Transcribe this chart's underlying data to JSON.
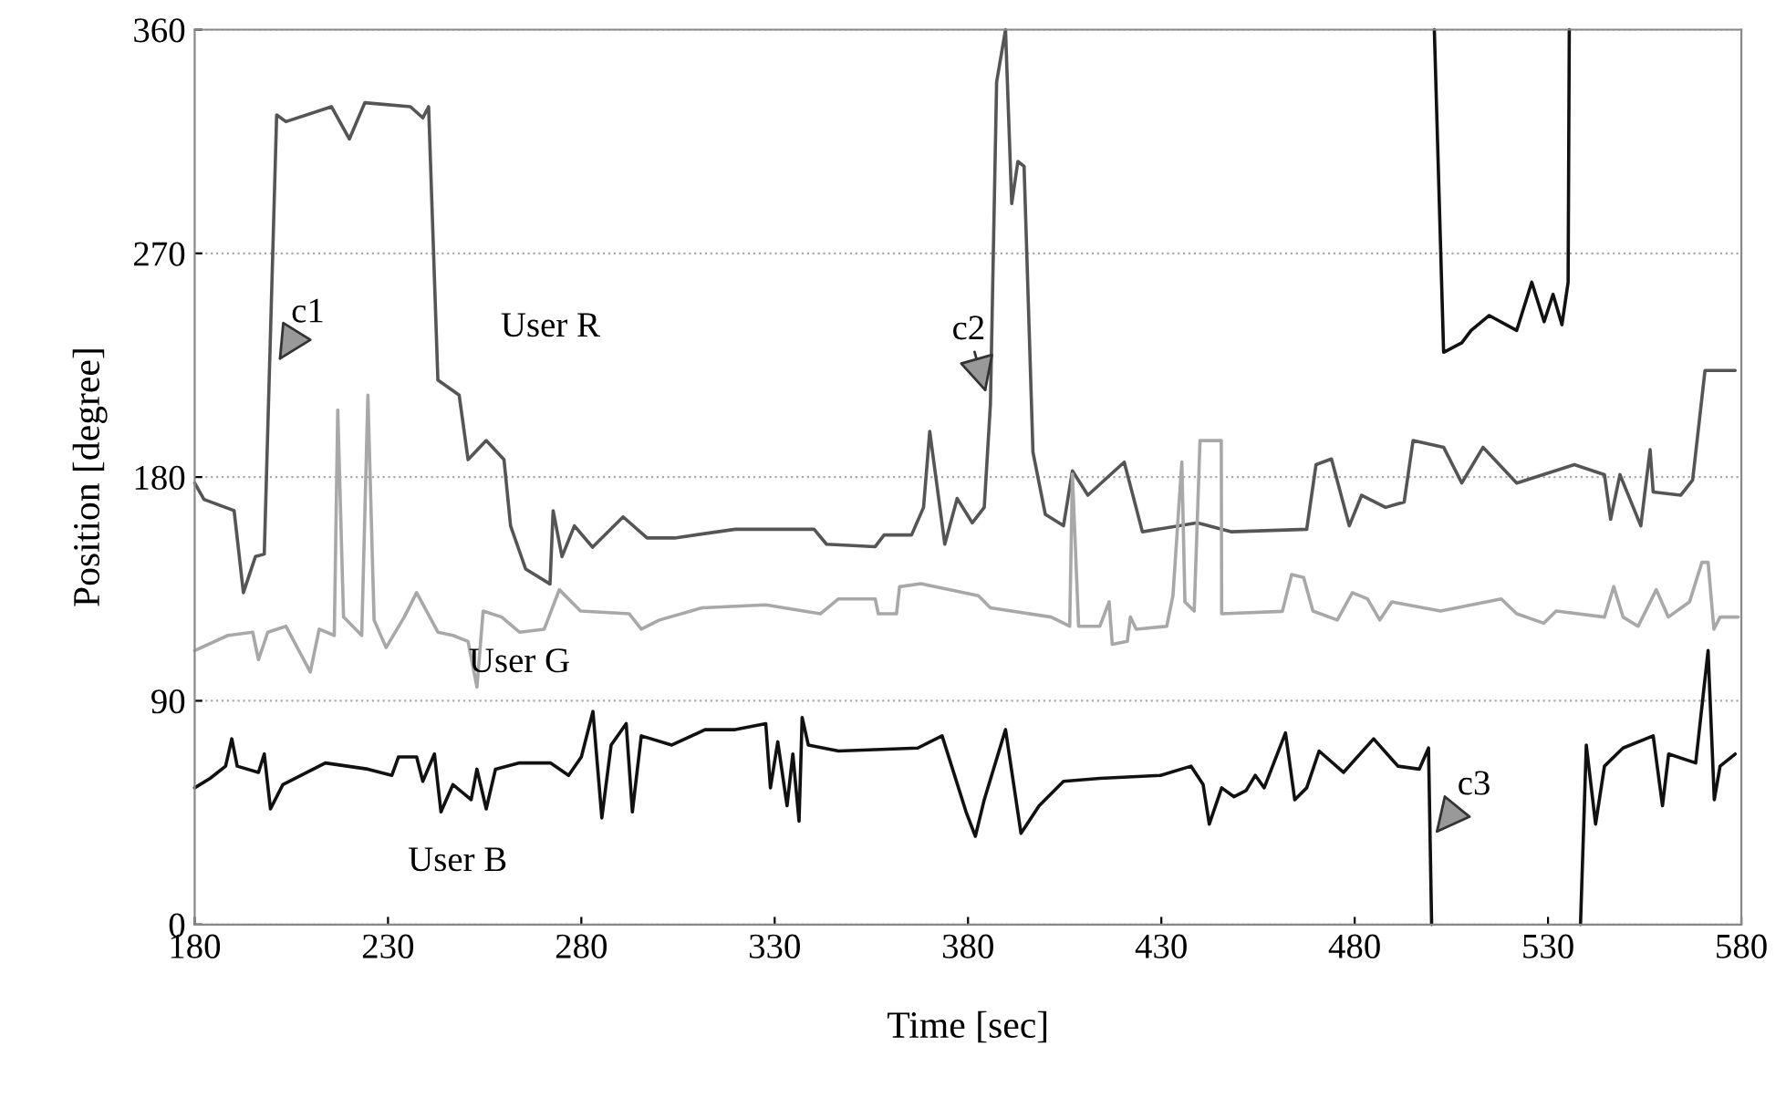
{
  "chart_data": {
    "type": "line",
    "xlabel": "Time [sec]",
    "ylabel": "Position [degree]",
    "xlim": [
      180,
      580
    ],
    "ylim": [
      0,
      360
    ],
    "xticks": [
      180,
      230,
      280,
      330,
      380,
      430,
      480,
      530,
      580
    ],
    "yticks": [
      0,
      90,
      180,
      270,
      360
    ],
    "grid": "y",
    "legend": false,
    "marker": "none",
    "line_style": "solid",
    "annotations": [
      {
        "text": "c1",
        "x": 201,
        "y": 225
      },
      {
        "text": "c2",
        "x": 385,
        "y": 212
      },
      {
        "text": "c3",
        "x": 500,
        "y": 35
      }
    ],
    "series": [
      {
        "name": "User R",
        "color": "#555555",
        "x": [
          180,
          182.4,
          190.2,
          192.6,
          195.7,
          198,
          201.2,
          203.6,
          215.4,
          220,
          224,
          235.8,
          239,
          240.5,
          242.9,
          248.4,
          250.7,
          255.4,
          260,
          261.7,
          265.6,
          271.9,
          272.7,
          275,
          278.2,
          282.9,
          290.8,
          297,
          304.1,
          319.8,
          340.2,
          343.4,
          356,
          358.3,
          365.4,
          368.5,
          370.1,
          374,
          377.2,
          381.1,
          384.2,
          385.8,
          387.4,
          389.7,
          391.3,
          392.9,
          394.5,
          396.8,
          400,
          404.7,
          407,
          411,
          420.4,
          425.1,
          439.3,
          448,
          467.6,
          470,
          474,
          478.6,
          481.8,
          488,
          492.8,
          495.1,
          503,
          507.7,
          513.2,
          521.9,
          536.8,
          544.6,
          546.2,
          548.6,
          554,
          556.4,
          557.2,
          564.3,
          567.4,
          570.6,
          578.4
        ],
        "values": [
          177.6,
          171,
          166.5,
          133.5,
          148,
          149,
          325.7,
          323,
          329,
          316,
          330.6,
          329,
          324.5,
          329,
          219,
          213,
          187,
          194.7,
          187,
          160.4,
          143,
          137,
          166.5,
          148,
          160.4,
          151.8,
          164,
          155.5,
          155.5,
          159,
          159,
          153,
          152,
          156.7,
          156.7,
          167.8,
          198.4,
          153,
          171.4,
          161.6,
          167.8,
          209.4,
          339,
          360,
          290,
          307,
          305,
          190,
          165,
          160.4,
          182.5,
          172.7,
          186,
          158,
          161.6,
          158,
          159,
          185,
          187.3,
          160.4,
          172.7,
          167.8,
          170,
          194.7,
          192,
          177.6,
          192,
          177.6,
          185,
          181,
          163,
          181,
          160.4,
          191,
          174,
          172.7,
          178.8,
          222.9,
          222.9
        ]
      },
      {
        "name": "User G",
        "color": "#a8a8a8",
        "x": [
          180,
          188.6,
          195,
          196.5,
          198.9,
          203.6,
          209.9,
          212.2,
          216.1,
          217,
          218.5,
          223.2,
          224.8,
          226.4,
          229.5,
          234.2,
          237.4,
          242.9,
          246.8,
          250.7,
          253,
          254.6,
          259.4,
          264,
          270.4,
          274.3,
          279.8,
          292.4,
          295.5,
          300.2,
          311.2,
          327.7,
          341.8,
          346.5,
          356,
          356.8,
          361.5,
          362.3,
          367.8,
          382.7,
          385.8,
          401.5,
          406.3,
          407,
          408.6,
          414.1,
          416.5,
          417.3,
          421.2,
          422,
          423.5,
          431.4,
          433,
          435.3,
          436.1,
          438.5,
          440,
          445.5,
          445.6,
          461.3,
          463.7,
          466.8,
          469.2,
          475.5,
          479.4,
          483.3,
          486.5,
          489.6,
          502.2,
          517.9,
          521.9,
          528.9,
          532.1,
          544.6,
          547,
          549.4,
          553.3,
          558,
          561.1,
          566.6,
          569.8,
          571.4,
          572.9,
          574.5,
          579.2
        ],
        "values": [
          110.2,
          116.3,
          117.6,
          106.5,
          117.6,
          120,
          101.6,
          118.8,
          116.3,
          207,
          123.7,
          116.3,
          213,
          122.5,
          111.4,
          123.7,
          133.5,
          117.6,
          116.3,
          113.9,
          95.5,
          126.1,
          123.7,
          117.6,
          118.8,
          134.7,
          126.1,
          125,
          118.8,
          122.5,
          127.4,
          128.6,
          125,
          131,
          131,
          125,
          125,
          135.9,
          137.1,
          132.3,
          127.4,
          123.7,
          120,
          181.2,
          120,
          120,
          129.8,
          112.7,
          113.9,
          123.7,
          118.8,
          120,
          132.3,
          186.1,
          129.8,
          126.1,
          194.7,
          194.7,
          125,
          126,
          140.8,
          139.6,
          126.1,
          122.5,
          133.5,
          131,
          122.5,
          129.8,
          126.1,
          131,
          125,
          121.2,
          126.1,
          123.7,
          135.9,
          123.7,
          120,
          134.7,
          123.7,
          129.8,
          145.7,
          145.7,
          118.8,
          123.7,
          123.7
        ]
      },
      {
        "name": "User B",
        "color": "#111111",
        "x": [
          180,
          184,
          188,
          189.6,
          191,
          196.5,
          198,
          199.6,
          202.8,
          213.8,
          224.8,
          231,
          232.7,
          237.4,
          239,
          242,
          243.7,
          246.8,
          251.5,
          253,
          255.4,
          257.8,
          264,
          272,
          276.7,
          280,
          283,
          285.3,
          287.7,
          291.6,
          293.2,
          295.5,
          303.4,
          312,
          319.8,
          327.7,
          328.9,
          330.8,
          333.2,
          334.7,
          336.3,
          337.1,
          338.7,
          346.5,
          367,
          373.3,
          379.5,
          381.9,
          384.2,
          389.7,
          393.7,
          398.4,
          404.7,
          414.1,
          429.8,
          437.7,
          440.8,
          442.4,
          445.6,
          448.8,
          451.9,
          454.3,
          456.6,
          462.1,
          464.5,
          467.6,
          470.8,
          477.1,
          484.9,
          491.2,
          496.7,
          499.1,
          499.9,
          500,
          500.6,
          503,
          507.7,
          510.1,
          514.8,
          521.9,
          525.8,
          529,
          531.3,
          533.6,
          535.2,
          535.5,
          537,
          538.4,
          539.9,
          542.3,
          544.6,
          549.4,
          557.2,
          559.6,
          561.2,
          568.2,
          571.4,
          573,
          574.5,
          578.4
        ],
        "values": [
          55,
          58.8,
          63.7,
          74.7,
          63.7,
          61.2,
          68.6,
          46.5,
          56.3,
          65,
          62.5,
          60,
          67.4,
          67.4,
          57.6,
          68.6,
          45.3,
          56.3,
          50.2,
          62.5,
          46.5,
          62.5,
          65,
          65,
          60,
          67.4,
          85.7,
          42.9,
          72.2,
          80.8,
          45.3,
          75.9,
          72.2,
          78.4,
          78.4,
          80.8,
          55,
          73.5,
          47.8,
          68.6,
          41.6,
          83.3,
          72.2,
          69.8,
          71,
          75.9,
          45.3,
          35.5,
          50.2,
          78.4,
          36.7,
          47.8,
          57.6,
          58.8,
          60,
          63.7,
          56.3,
          40.4,
          55,
          51.4,
          53.9,
          60,
          55,
          77.1,
          50.2,
          55,
          69.8,
          61.2,
          74.7,
          63.7,
          62.5,
          71,
          0,
          null,
          360,
          230.2,
          234,
          239,
          245,
          239,
          258.4,
          242.5,
          253.5,
          241.3,
          258.4,
          360,
          null,
          0,
          72.2,
          40.4,
          63.7,
          71,
          75.9,
          47.8,
          68.6,
          65,
          110.2,
          50.2,
          63.7,
          68.6
        ]
      }
    ]
  }
}
